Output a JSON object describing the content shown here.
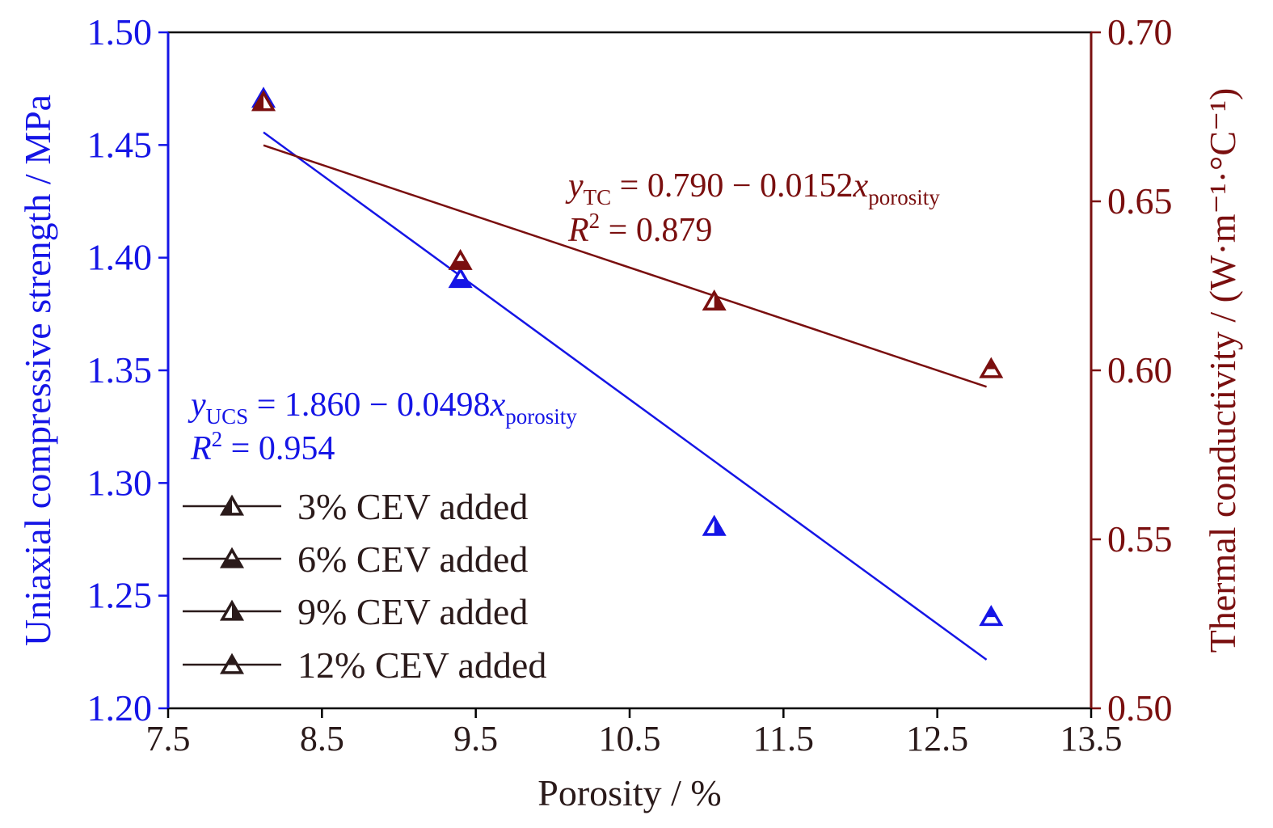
{
  "chart_data": {
    "type": "scatter",
    "xlabel": "Porosity / %",
    "ylabel_left": "Uniaxial compressive strength / MPa",
    "ylabel_right": "Thermal conductivity / (W·m⁻¹·°C⁻¹)",
    "xlim": [
      7.5,
      13.5
    ],
    "ylim_left": [
      1.2,
      1.5
    ],
    "ylim_right": [
      0.5,
      0.7
    ],
    "x_ticks": [
      "7.5",
      "8.5",
      "9.5",
      "10.5",
      "11.5",
      "12.5",
      "13.5"
    ],
    "y_left_ticks": [
      "1.20",
      "1.25",
      "1.30",
      "1.35",
      "1.40",
      "1.45",
      "1.50"
    ],
    "y_right_ticks": [
      "0.50",
      "0.55",
      "0.60",
      "0.65",
      "0.70"
    ],
    "grid": false,
    "legend_placement": "lower-left",
    "colors": {
      "ucs": "#1515e6",
      "tc": "#7a0f0f",
      "legend": "#2a1a1a"
    },
    "series": [
      {
        "name": "3% CEV added",
        "x": [
          8.12
        ],
        "ucs": [
          1.47
        ],
        "tc": [
          0.679
        ]
      },
      {
        "name": "6% CEV added",
        "x": [
          9.4
        ],
        "ucs": [
          1.39
        ],
        "tc": [
          0.632
        ]
      },
      {
        "name": "9% CEV added",
        "x": [
          11.05
        ],
        "ucs": [
          1.28
        ],
        "tc": [
          0.62
        ]
      },
      {
        "name": "12% CEV added",
        "x": [
          12.85
        ],
        "ucs": [
          1.24
        ],
        "tc": [
          0.6
        ]
      }
    ],
    "fits": {
      "ucs": {
        "intercept": 1.86,
        "slope": -0.0498,
        "x_range": [
          8.12,
          12.82
        ]
      },
      "tc": {
        "intercept": 0.79,
        "slope": -0.0152,
        "x_range": [
          8.12,
          12.82
        ]
      }
    },
    "annotations": {
      "ucs_eq": {
        "var": "y",
        "sub": "UCS",
        "rhs": " = 1.860 − 0.0498",
        "x": "x",
        "xsub": "porosity",
        "r2_label": "R",
        "r2_value": " = 0.954"
      },
      "tc_eq": {
        "var": "y",
        "sub": "TC",
        "rhs": " = 0.790 − 0.0152",
        "x": "x",
        "xsub": "porosity",
        "r2_label": "R",
        "r2_value": " = 0.879"
      }
    }
  }
}
